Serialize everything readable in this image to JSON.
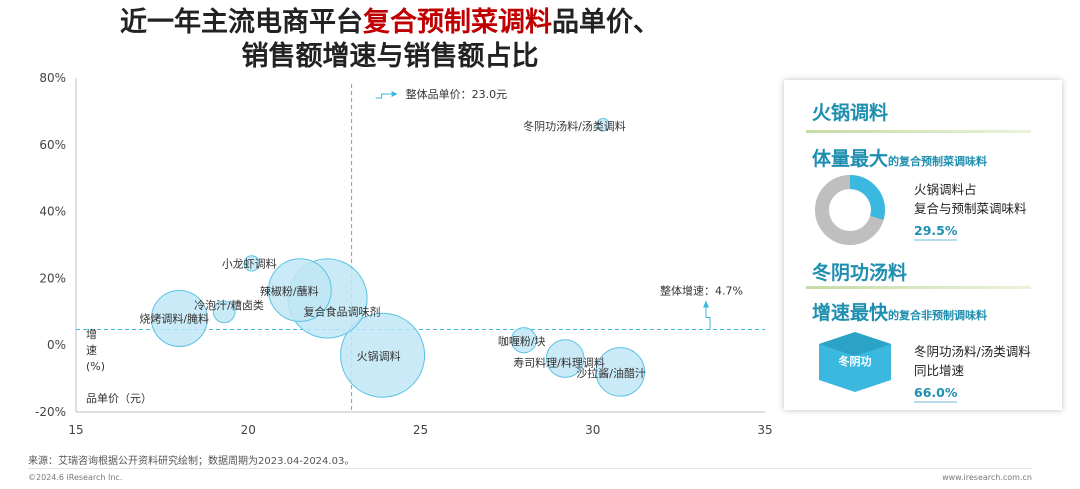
{
  "title": {
    "line1_pre": "近一年主流电商平台",
    "line1_highlight": "复合预制菜调料",
    "line1_post": "品单价、",
    "line2": "销售额增速与销售额占比"
  },
  "chart_data": {
    "type": "bubble",
    "xlabel": "品单价（元）",
    "ylabel_chars": [
      "增",
      "速",
      "(%)"
    ],
    "xlim": [
      15,
      35
    ],
    "ylim": [
      -20,
      80
    ],
    "x_ticks": [
      "15",
      "20",
      "25",
      "30",
      "35"
    ],
    "y_ticks": [
      "80%",
      "60%",
      "40%",
      "20%",
      "0%",
      "-20%"
    ],
    "y_tick_values": [
      80,
      60,
      40,
      20,
      0,
      -20
    ],
    "x_tick_values": [
      15,
      20,
      25,
      30,
      35
    ],
    "ref_x": 23.0,
    "ref_x_label": "整体品单价：23.0元",
    "ref_y": 4.7,
    "ref_y_label": "整体增速：4.7%",
    "points": [
      {
        "name": "冬阴功汤料/汤类调料",
        "x": 30.3,
        "y": 66,
        "size": 0.2
      },
      {
        "name": "小龙虾调料",
        "x": 20.1,
        "y": 24.5,
        "size": 0.3
      },
      {
        "name": "辣椒粉/蘸料",
        "x": 21.5,
        "y": 16.5,
        "size": 5
      },
      {
        "name": "复合食品调味剂",
        "x": 22.3,
        "y": 14,
        "size": 8
      },
      {
        "name": "冷泡汁/糟卤类",
        "x": 19.3,
        "y": 10,
        "size": 0.6
      },
      {
        "name": "烧烤调料/腌料",
        "x": 18.0,
        "y": 8,
        "size": 4
      },
      {
        "name": "火锅调料",
        "x": 23.9,
        "y": -3,
        "size": 9
      },
      {
        "name": "咖喱粉/块",
        "x": 28.0,
        "y": 1.5,
        "size": 0.8
      },
      {
        "name": "寿司料理/料理调料",
        "x": 29.2,
        "y": -4,
        "size": 1.8
      },
      {
        "name": "沙拉酱/油醋汁",
        "x": 30.8,
        "y": -8,
        "size": 3
      }
    ]
  },
  "panel": {
    "cat1": "火锅调料",
    "sub1_big": "体量最大",
    "sub1_small": "的复合预制菜调味料",
    "desc1_l1": "火锅调料占",
    "desc1_l2": "复合与预制菜调味料",
    "val1": "29.5%",
    "donut_fraction": 0.295,
    "cat2": "冬阴功汤料",
    "sub2_big": "增速最快",
    "sub2_small": "的复合非预制调味料",
    "badge": "冬阴功",
    "desc2_l1": "冬阴功汤料/汤类调料",
    "desc2_l2": "同比增速",
    "val2": "66.0%"
  },
  "footer": {
    "source": "来源：艾瑞咨询根据公开资料研究绘制；数据周期为2023.04-2024.03。",
    "copyright": "©2024.6 iResearch Inc.",
    "url": "www.iresearch.com.cn"
  },
  "colors": {
    "bubble_fill": "#bfe6f4",
    "bubble_stroke": "#5bc3e4",
    "ref_line": "#3ab8e0",
    "donut_main": "#3ab8e0",
    "donut_rest": "#bfbfbf"
  }
}
